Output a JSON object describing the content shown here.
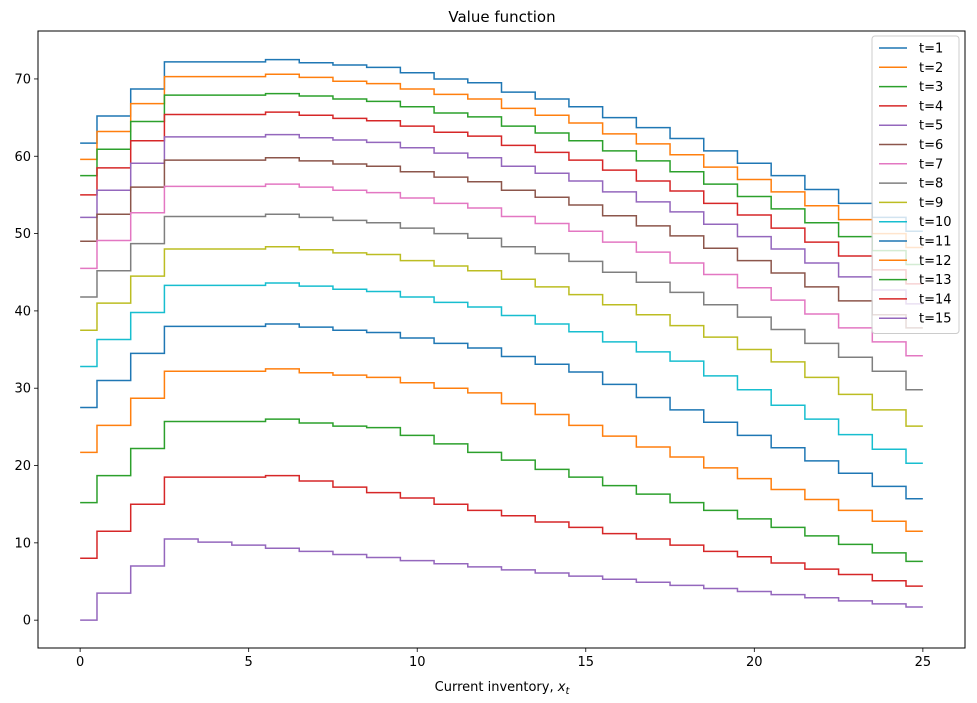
{
  "chart_data": {
    "type": "line",
    "step": "post",
    "title": "Value function",
    "xlabel": "Current inventory, ",
    "xlabel_math": "x",
    "xlabel_sub": "t",
    "ylabel": "",
    "xlim": [
      -1.25,
      26.25
    ],
    "ylim": [
      -3.6,
      76.2
    ],
    "xticks": [
      0,
      5,
      10,
      15,
      20,
      25
    ],
    "yticks": [
      0,
      10,
      20,
      30,
      40,
      50,
      60,
      70
    ],
    "grid": false,
    "legend_position": "upper right",
    "x": [
      0,
      0.5,
      1.5,
      2.5,
      3.5,
      4.5,
      5.5,
      6.5,
      7.5,
      8.5,
      9.5,
      10.5,
      11.5,
      12.5,
      13.5,
      14.5,
      15.5,
      16.5,
      17.5,
      18.5,
      19.5,
      20.5,
      21.5,
      22.5,
      23.5,
      24.5,
      25
    ],
    "series": [
      {
        "name": "t=1",
        "color": "#1f77b4",
        "values": [
          61.7,
          65.2,
          68.7,
          72.2,
          72.2,
          72.2,
          72.5,
          72.1,
          71.8,
          71.5,
          70.8,
          70.0,
          69.5,
          68.3,
          67.4,
          66.4,
          65.0,
          63.7,
          62.3,
          60.7,
          59.1,
          57.5,
          55.7,
          53.9,
          52.1,
          50.3,
          50.3
        ]
      },
      {
        "name": "t=2",
        "color": "#ff7f0e",
        "values": [
          59.6,
          63.2,
          66.8,
          70.3,
          70.3,
          70.3,
          70.6,
          70.2,
          69.7,
          69.4,
          68.7,
          68.0,
          67.4,
          66.2,
          65.3,
          64.3,
          62.9,
          61.6,
          60.2,
          58.6,
          57.0,
          55.4,
          53.6,
          51.8,
          50.0,
          48.2,
          48.2
        ]
      },
      {
        "name": "t=3",
        "color": "#2ca02c",
        "values": [
          57.5,
          60.9,
          64.5,
          67.9,
          67.9,
          67.9,
          68.1,
          67.8,
          67.4,
          67.1,
          66.4,
          65.6,
          65.1,
          63.9,
          63.0,
          62.0,
          60.7,
          59.4,
          58.0,
          56.4,
          54.8,
          53.2,
          51.4,
          49.6,
          47.8,
          46.0,
          46.0
        ]
      },
      {
        "name": "t=4",
        "color": "#d62728",
        "values": [
          55.0,
          58.5,
          62.0,
          65.4,
          65.4,
          65.4,
          65.7,
          65.3,
          64.9,
          64.6,
          63.9,
          63.1,
          62.6,
          61.4,
          60.5,
          59.5,
          58.2,
          56.8,
          55.5,
          53.9,
          52.4,
          50.7,
          48.9,
          47.1,
          45.3,
          43.5,
          43.5
        ]
      },
      {
        "name": "t=5",
        "color": "#9467bd",
        "values": [
          52.1,
          55.6,
          59.1,
          62.5,
          62.5,
          62.5,
          62.8,
          62.4,
          62.1,
          61.8,
          61.1,
          60.4,
          59.8,
          58.7,
          57.8,
          56.8,
          55.4,
          54.1,
          52.8,
          51.2,
          49.6,
          48.0,
          46.2,
          44.4,
          42.7,
          40.9,
          40.9
        ]
      },
      {
        "name": "t=6",
        "color": "#8c564b",
        "values": [
          49.0,
          52.5,
          56.0,
          59.5,
          59.5,
          59.5,
          59.8,
          59.4,
          59.0,
          58.7,
          58.0,
          57.3,
          56.7,
          55.6,
          54.7,
          53.7,
          52.3,
          51.0,
          49.7,
          48.1,
          46.5,
          44.9,
          43.1,
          41.3,
          39.5,
          37.8,
          37.8
        ]
      },
      {
        "name": "t=7",
        "color": "#e377c2",
        "values": [
          45.5,
          49.1,
          52.7,
          56.1,
          56.1,
          56.1,
          56.4,
          56.0,
          55.6,
          55.3,
          54.6,
          53.9,
          53.3,
          52.2,
          51.3,
          50.3,
          48.9,
          47.6,
          46.2,
          44.7,
          43.0,
          41.4,
          39.6,
          37.8,
          36.0,
          34.2,
          34.2
        ]
      },
      {
        "name": "t=8",
        "color": "#7f7f7f",
        "values": [
          41.8,
          45.2,
          48.7,
          52.2,
          52.2,
          52.2,
          52.5,
          52.1,
          51.7,
          51.4,
          50.7,
          50.0,
          49.4,
          48.3,
          47.4,
          46.4,
          45.0,
          43.7,
          42.4,
          40.8,
          39.2,
          37.6,
          35.8,
          34.0,
          32.2,
          29.8,
          29.8
        ]
      },
      {
        "name": "t=9",
        "color": "#bcbd22",
        "values": [
          37.5,
          41.0,
          44.5,
          48.0,
          48.0,
          48.0,
          48.3,
          47.9,
          47.5,
          47.3,
          46.5,
          45.8,
          45.2,
          44.1,
          43.1,
          42.1,
          40.8,
          39.5,
          38.1,
          36.6,
          35.0,
          33.4,
          31.4,
          29.2,
          27.2,
          25.1,
          25.1
        ]
      },
      {
        "name": "t=10",
        "color": "#17becf",
        "values": [
          32.8,
          36.3,
          39.8,
          43.3,
          43.3,
          43.3,
          43.6,
          43.2,
          42.8,
          42.5,
          41.8,
          41.1,
          40.5,
          39.4,
          38.3,
          37.3,
          36.0,
          34.7,
          33.5,
          31.6,
          29.8,
          27.8,
          26.0,
          24.0,
          22.1,
          20.3,
          20.3
        ]
      },
      {
        "name": "t=11",
        "color": "#1f77b4",
        "values": [
          27.5,
          31.0,
          34.5,
          38.0,
          38.0,
          38.0,
          38.3,
          37.9,
          37.5,
          37.2,
          36.5,
          35.8,
          35.2,
          34.1,
          33.1,
          32.1,
          30.5,
          28.8,
          27.2,
          25.6,
          23.9,
          22.3,
          20.6,
          19.0,
          17.3,
          15.7,
          15.7
        ]
      },
      {
        "name": "t=12",
        "color": "#ff7f0e",
        "values": [
          21.7,
          25.2,
          28.7,
          32.2,
          32.2,
          32.2,
          32.5,
          32.0,
          31.7,
          31.4,
          30.7,
          30.0,
          29.4,
          28.0,
          26.6,
          25.2,
          23.8,
          22.4,
          21.1,
          19.7,
          18.3,
          16.9,
          15.6,
          14.2,
          12.8,
          11.5,
          11.5
        ]
      },
      {
        "name": "t=13",
        "color": "#2ca02c",
        "values": [
          15.2,
          18.7,
          22.2,
          25.7,
          25.7,
          25.7,
          26.0,
          25.5,
          25.1,
          24.9,
          23.9,
          22.8,
          21.7,
          20.7,
          19.5,
          18.5,
          17.4,
          16.3,
          15.2,
          14.2,
          13.1,
          12.0,
          10.9,
          9.8,
          8.7,
          7.6,
          7.6
        ]
      },
      {
        "name": "t=14",
        "color": "#d62728",
        "values": [
          8.0,
          11.5,
          15.0,
          18.5,
          18.5,
          18.5,
          18.7,
          18.0,
          17.2,
          16.5,
          15.8,
          15.0,
          14.2,
          13.5,
          12.7,
          12.0,
          11.2,
          10.5,
          9.7,
          8.9,
          8.2,
          7.4,
          6.6,
          5.9,
          5.1,
          4.4,
          4.4
        ]
      },
      {
        "name": "t=15",
        "color": "#9467bd",
        "values": [
          0.0,
          3.5,
          7.0,
          10.5,
          10.1,
          9.7,
          9.3,
          8.9,
          8.5,
          8.1,
          7.7,
          7.3,
          6.9,
          6.5,
          6.1,
          5.7,
          5.3,
          4.9,
          4.5,
          4.1,
          3.7,
          3.3,
          2.9,
          2.5,
          2.1,
          1.7,
          1.7
        ]
      }
    ]
  }
}
